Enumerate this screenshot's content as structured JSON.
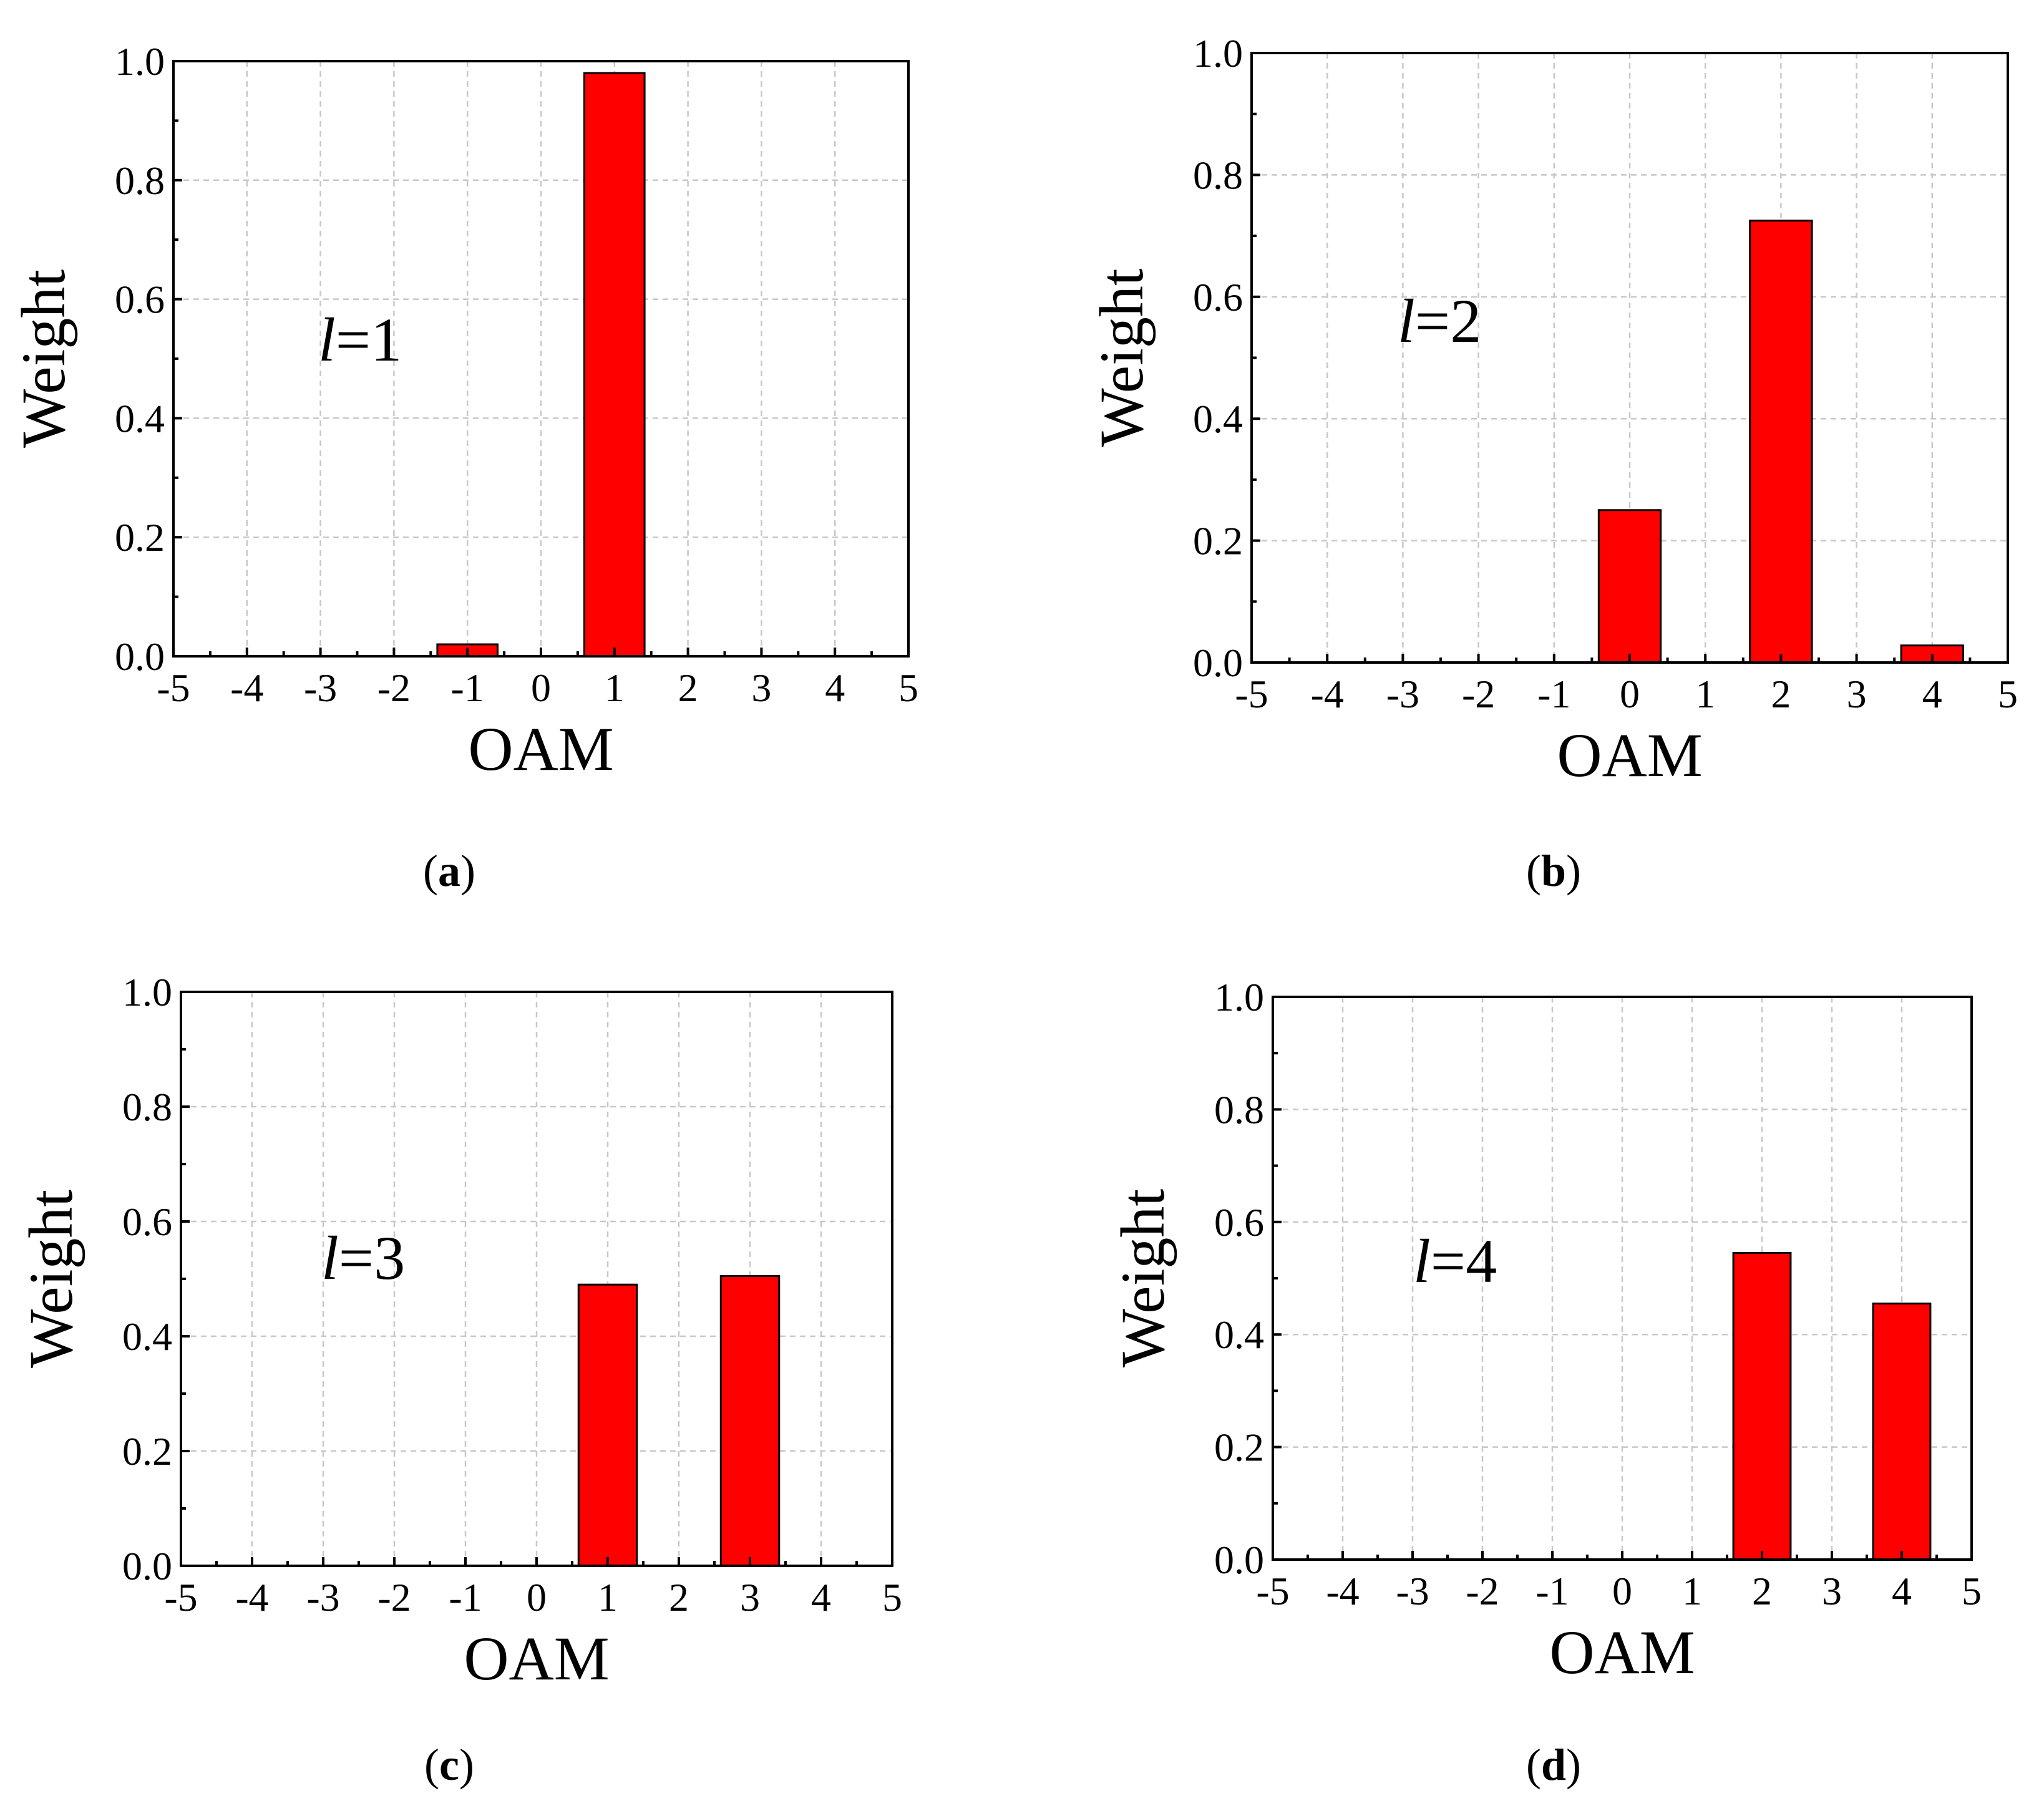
{
  "chart_data": [
    {
      "type": "bar",
      "panel": "a",
      "caption": "a",
      "annotation": {
        "var": "l",
        "value": "=1"
      },
      "xlabel": "OAM",
      "ylabel": "Weight",
      "xlim": [
        -5,
        5
      ],
      "ylim": [
        0,
        1.0
      ],
      "xticks": [
        "-5",
        "-4",
        "-3",
        "-2",
        "-1",
        "0",
        "1",
        "2",
        "3",
        "4",
        "5"
      ],
      "yticks": [
        "0.0",
        "0.2",
        "0.4",
        "0.6",
        "0.8",
        "1.0"
      ],
      "grid": true,
      "bars": [
        {
          "x": -1,
          "value": 0.02
        },
        {
          "x": 1,
          "value": 0.98
        }
      ]
    },
    {
      "type": "bar",
      "panel": "b",
      "caption": "b",
      "annotation": {
        "var": "l",
        "value": "=2"
      },
      "xlabel": "OAM",
      "ylabel": "Weight",
      "xlim": [
        -5,
        5
      ],
      "ylim": [
        0,
        1.0
      ],
      "xticks": [
        "-5",
        "-4",
        "-3",
        "-2",
        "-1",
        "0",
        "1",
        "2",
        "3",
        "4",
        "5"
      ],
      "yticks": [
        "0.0",
        "0.2",
        "0.4",
        "0.6",
        "0.8",
        "1.0"
      ],
      "grid": true,
      "bars": [
        {
          "x": 0,
          "value": 0.25
        },
        {
          "x": 2,
          "value": 0.725
        },
        {
          "x": 4,
          "value": 0.028
        }
      ]
    },
    {
      "type": "bar",
      "panel": "c",
      "caption": "c",
      "annotation": {
        "var": "l",
        "value": "=3"
      },
      "xlabel": "OAM",
      "ylabel": "Weight",
      "xlim": [
        -5,
        5
      ],
      "ylim": [
        0,
        1.0
      ],
      "xticks": [
        "-5",
        "-4",
        "-3",
        "-2",
        "-1",
        "0",
        "1",
        "2",
        "3",
        "4",
        "5"
      ],
      "yticks": [
        "0.0",
        "0.2",
        "0.4",
        "0.6",
        "0.8",
        "1.0"
      ],
      "grid": true,
      "bars": [
        {
          "x": 1,
          "value": 0.49
        },
        {
          "x": 3,
          "value": 0.505
        }
      ]
    },
    {
      "type": "bar",
      "panel": "d",
      "caption": "d",
      "annotation": {
        "var": "l",
        "value": "=4"
      },
      "xlabel": "OAM",
      "ylabel": "Weight",
      "xlim": [
        -5,
        5
      ],
      "ylim": [
        0,
        1.0
      ],
      "xticks": [
        "-5",
        "-4",
        "-3",
        "-2",
        "-1",
        "0",
        "1",
        "2",
        "3",
        "4",
        "5"
      ],
      "yticks": [
        "0.0",
        "0.2",
        "0.4",
        "0.6",
        "0.8",
        "1.0"
      ],
      "grid": true,
      "bars": [
        {
          "x": 2,
          "value": 0.545
        },
        {
          "x": 4,
          "value": 0.455
        }
      ]
    }
  ],
  "colors": {
    "bar_fill": "#ff0000",
    "bar_edge": "#000000",
    "grid": "#c8c8c8",
    "axis": "#000000"
  }
}
